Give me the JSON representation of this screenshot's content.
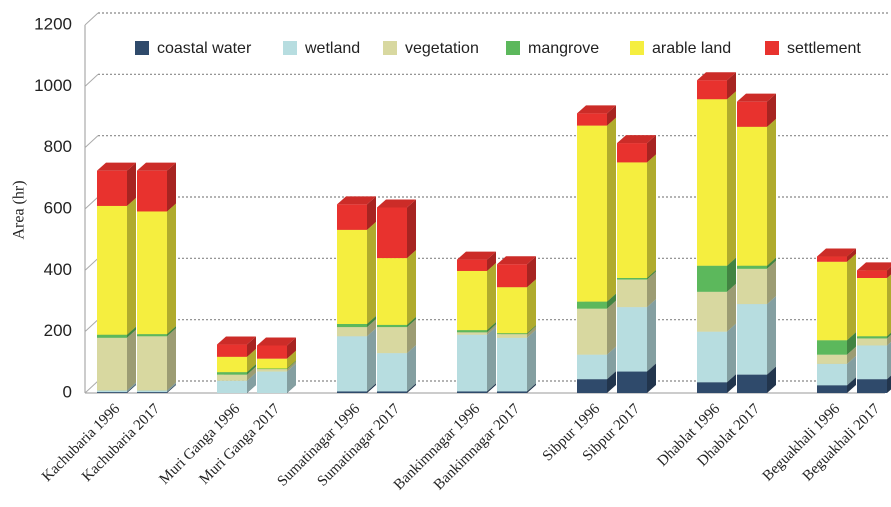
{
  "chart_data": {
    "type": "bar3d_stacked",
    "y_label": "Area (hr)",
    "categories": [
      "Kachubaria 1996",
      "Kachubaria 2017",
      "Muri Ganga 1996",
      "Muri Ganga 2017",
      "Sumatinagar 1996",
      "Sumatinagar 2017",
      "Bankimnagar 1996",
      "Bankimnagar 2017",
      "Sibpur 1996",
      "Sibpur 2017",
      "Dhablat 1996",
      "Dhablat 2017",
      "Beguakhali 1996",
      "Beguakhali 2017"
    ],
    "series": [
      {
        "name": "coastal water",
        "color": "#2f4a6b",
        "values": [
          3,
          3,
          0,
          0,
          5,
          5,
          5,
          5,
          45,
          70,
          35,
          60,
          25,
          45
        ]
      },
      {
        "name": "wetland",
        "color": "#b7dde0",
        "values": [
          5,
          5,
          40,
          70,
          180,
          125,
          185,
          175,
          80,
          210,
          165,
          230,
          70,
          110
        ]
      },
      {
        "name": "vegetation",
        "color": "#d8d8a0",
        "values": [
          172,
          177,
          20,
          8,
          30,
          85,
          8,
          12,
          150,
          90,
          130,
          115,
          30,
          23
        ]
      },
      {
        "name": "mangrove",
        "color": "#5cb85c",
        "values": [
          10,
          7,
          8,
          2,
          10,
          7,
          7,
          3,
          23,
          5,
          85,
          10,
          47,
          7
        ]
      },
      {
        "name": "arable land",
        "color": "#f5ee3f",
        "values": [
          420,
          400,
          50,
          32,
          307,
          218,
          193,
          150,
          574,
          377,
          543,
          453,
          256,
          190
        ]
      },
      {
        "name": "settlement",
        "color": "#e8322e",
        "values": [
          115,
          133,
          40,
          43,
          83,
          165,
          37,
          75,
          40,
          63,
          62,
          82,
          17,
          25
        ]
      }
    ],
    "ylim": [
      0,
      1200
    ],
    "yticks": [
      0,
      200,
      400,
      600,
      800,
      1000,
      1200
    ],
    "grid": true,
    "legend": "top"
  }
}
